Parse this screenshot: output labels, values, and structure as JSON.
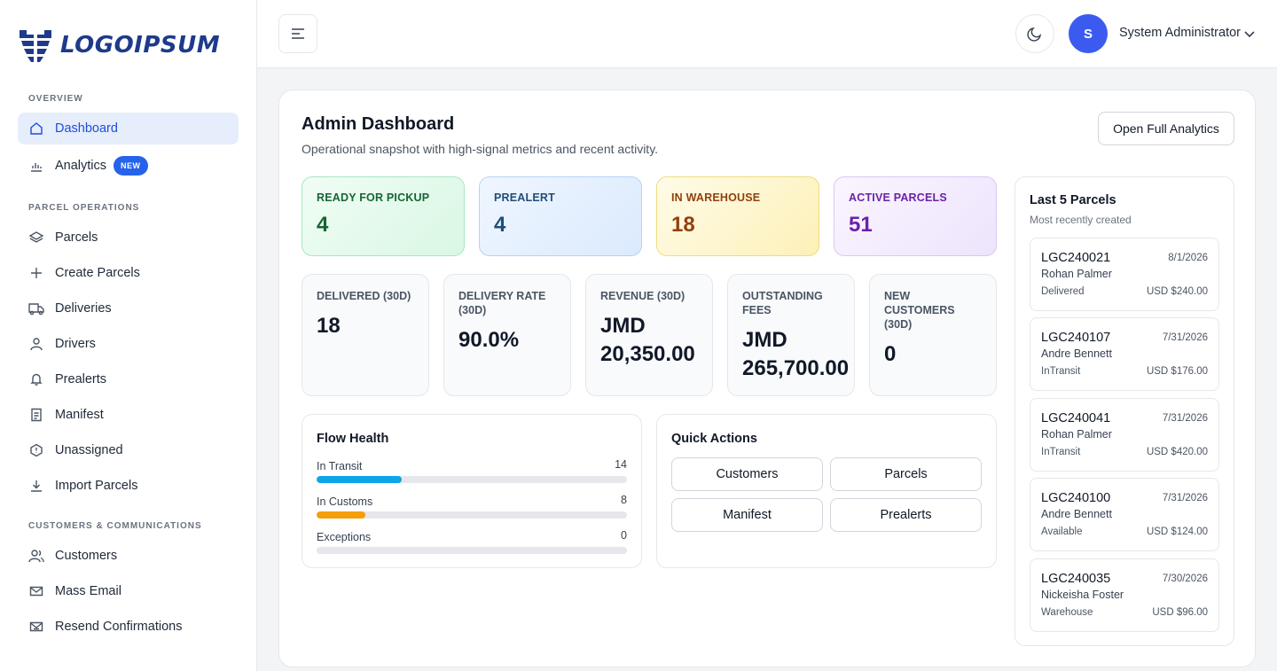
{
  "brand": {
    "logo_text": "LOGOIPSUM",
    "color": "#1e3a8a"
  },
  "sidebar": {
    "sections": [
      {
        "label": "OVERVIEW"
      },
      {
        "label": "PARCEL OPERATIONS"
      },
      {
        "label": "CUSTOMERS & COMMUNICATIONS"
      }
    ],
    "items": [
      {
        "label": "Dashboard",
        "icon": "home-icon",
        "active": true
      },
      {
        "label": "Analytics",
        "icon": "bar-chart-icon",
        "badge": "NEW"
      },
      {
        "label": "Parcels",
        "icon": "layers-icon"
      },
      {
        "label": "Create Parcels",
        "icon": "plus-icon"
      },
      {
        "label": "Deliveries",
        "icon": "truck-icon"
      },
      {
        "label": "Drivers",
        "icon": "user-icon"
      },
      {
        "label": "Prealerts",
        "icon": "bell-icon"
      },
      {
        "label": "Manifest",
        "icon": "document-icon"
      },
      {
        "label": "Unassigned",
        "icon": "hexagon-alert-icon"
      },
      {
        "label": "Import Parcels",
        "icon": "download-icon"
      },
      {
        "label": "Customers",
        "icon": "users-icon"
      },
      {
        "label": "Mass Email",
        "icon": "mail-icon"
      },
      {
        "label": "Resend Confirmations",
        "icon": "mail-resend-icon"
      }
    ]
  },
  "topbar": {
    "avatar_initial": "S",
    "user_name": "System Administrator"
  },
  "dashboard": {
    "title": "Admin Dashboard",
    "subtitle": "Operational snapshot with high-signal metrics and recent activity.",
    "analytics_button": "Open Full Analytics",
    "status_cards": [
      {
        "label": "READY FOR PICKUP",
        "value": "4"
      },
      {
        "label": "PREALERT",
        "value": "4"
      },
      {
        "label": "IN WAREHOUSE",
        "value": "18"
      },
      {
        "label": "ACTIVE PARCELS",
        "value": "51"
      }
    ],
    "metrics": [
      {
        "label": "DELIVERED (30D)",
        "value": "18"
      },
      {
        "label": "DELIVERY RATE (30D)",
        "value": "90.0%"
      },
      {
        "label": "REVENUE (30D)",
        "value": "JMD 20,350.00"
      },
      {
        "label": "OUTSTANDING FEES",
        "value": "JMD 265,700.00"
      },
      {
        "label": "NEW CUSTOMERS (30D)",
        "value": "0"
      }
    ],
    "flow_health": {
      "title": "Flow Health",
      "max": 51,
      "rows": [
        {
          "label": "In Transit",
          "count": "14",
          "value": 14,
          "color": "#0ea5e9"
        },
        {
          "label": "In Customs",
          "count": "8",
          "value": 8,
          "color": "#f59e0b"
        },
        {
          "label": "Exceptions",
          "count": "0",
          "value": 0,
          "color": "#ef4444"
        }
      ]
    },
    "quick_actions": {
      "title": "Quick Actions",
      "buttons": [
        "Customers",
        "Parcels",
        "Manifest",
        "Prealerts"
      ]
    },
    "recent": {
      "title": "Last 5 Parcels",
      "subtitle": "Most recently created",
      "parcels": [
        {
          "id": "LGC240021",
          "date": "8/1/2026",
          "name": "Rohan Palmer",
          "status": "Delivered",
          "amount": "USD $240.00"
        },
        {
          "id": "LGC240107",
          "date": "7/31/2026",
          "name": "Andre Bennett",
          "status": "InTransit",
          "amount": "USD $176.00"
        },
        {
          "id": "LGC240041",
          "date": "7/31/2026",
          "name": "Rohan Palmer",
          "status": "InTransit",
          "amount": "USD $420.00"
        },
        {
          "id": "LGC240100",
          "date": "7/31/2026",
          "name": "Andre Bennett",
          "status": "Available",
          "amount": "USD $124.00"
        },
        {
          "id": "LGC240035",
          "date": "7/30/2026",
          "name": "Nickeisha Foster",
          "status": "Warehouse",
          "amount": "USD $96.00"
        }
      ]
    }
  }
}
